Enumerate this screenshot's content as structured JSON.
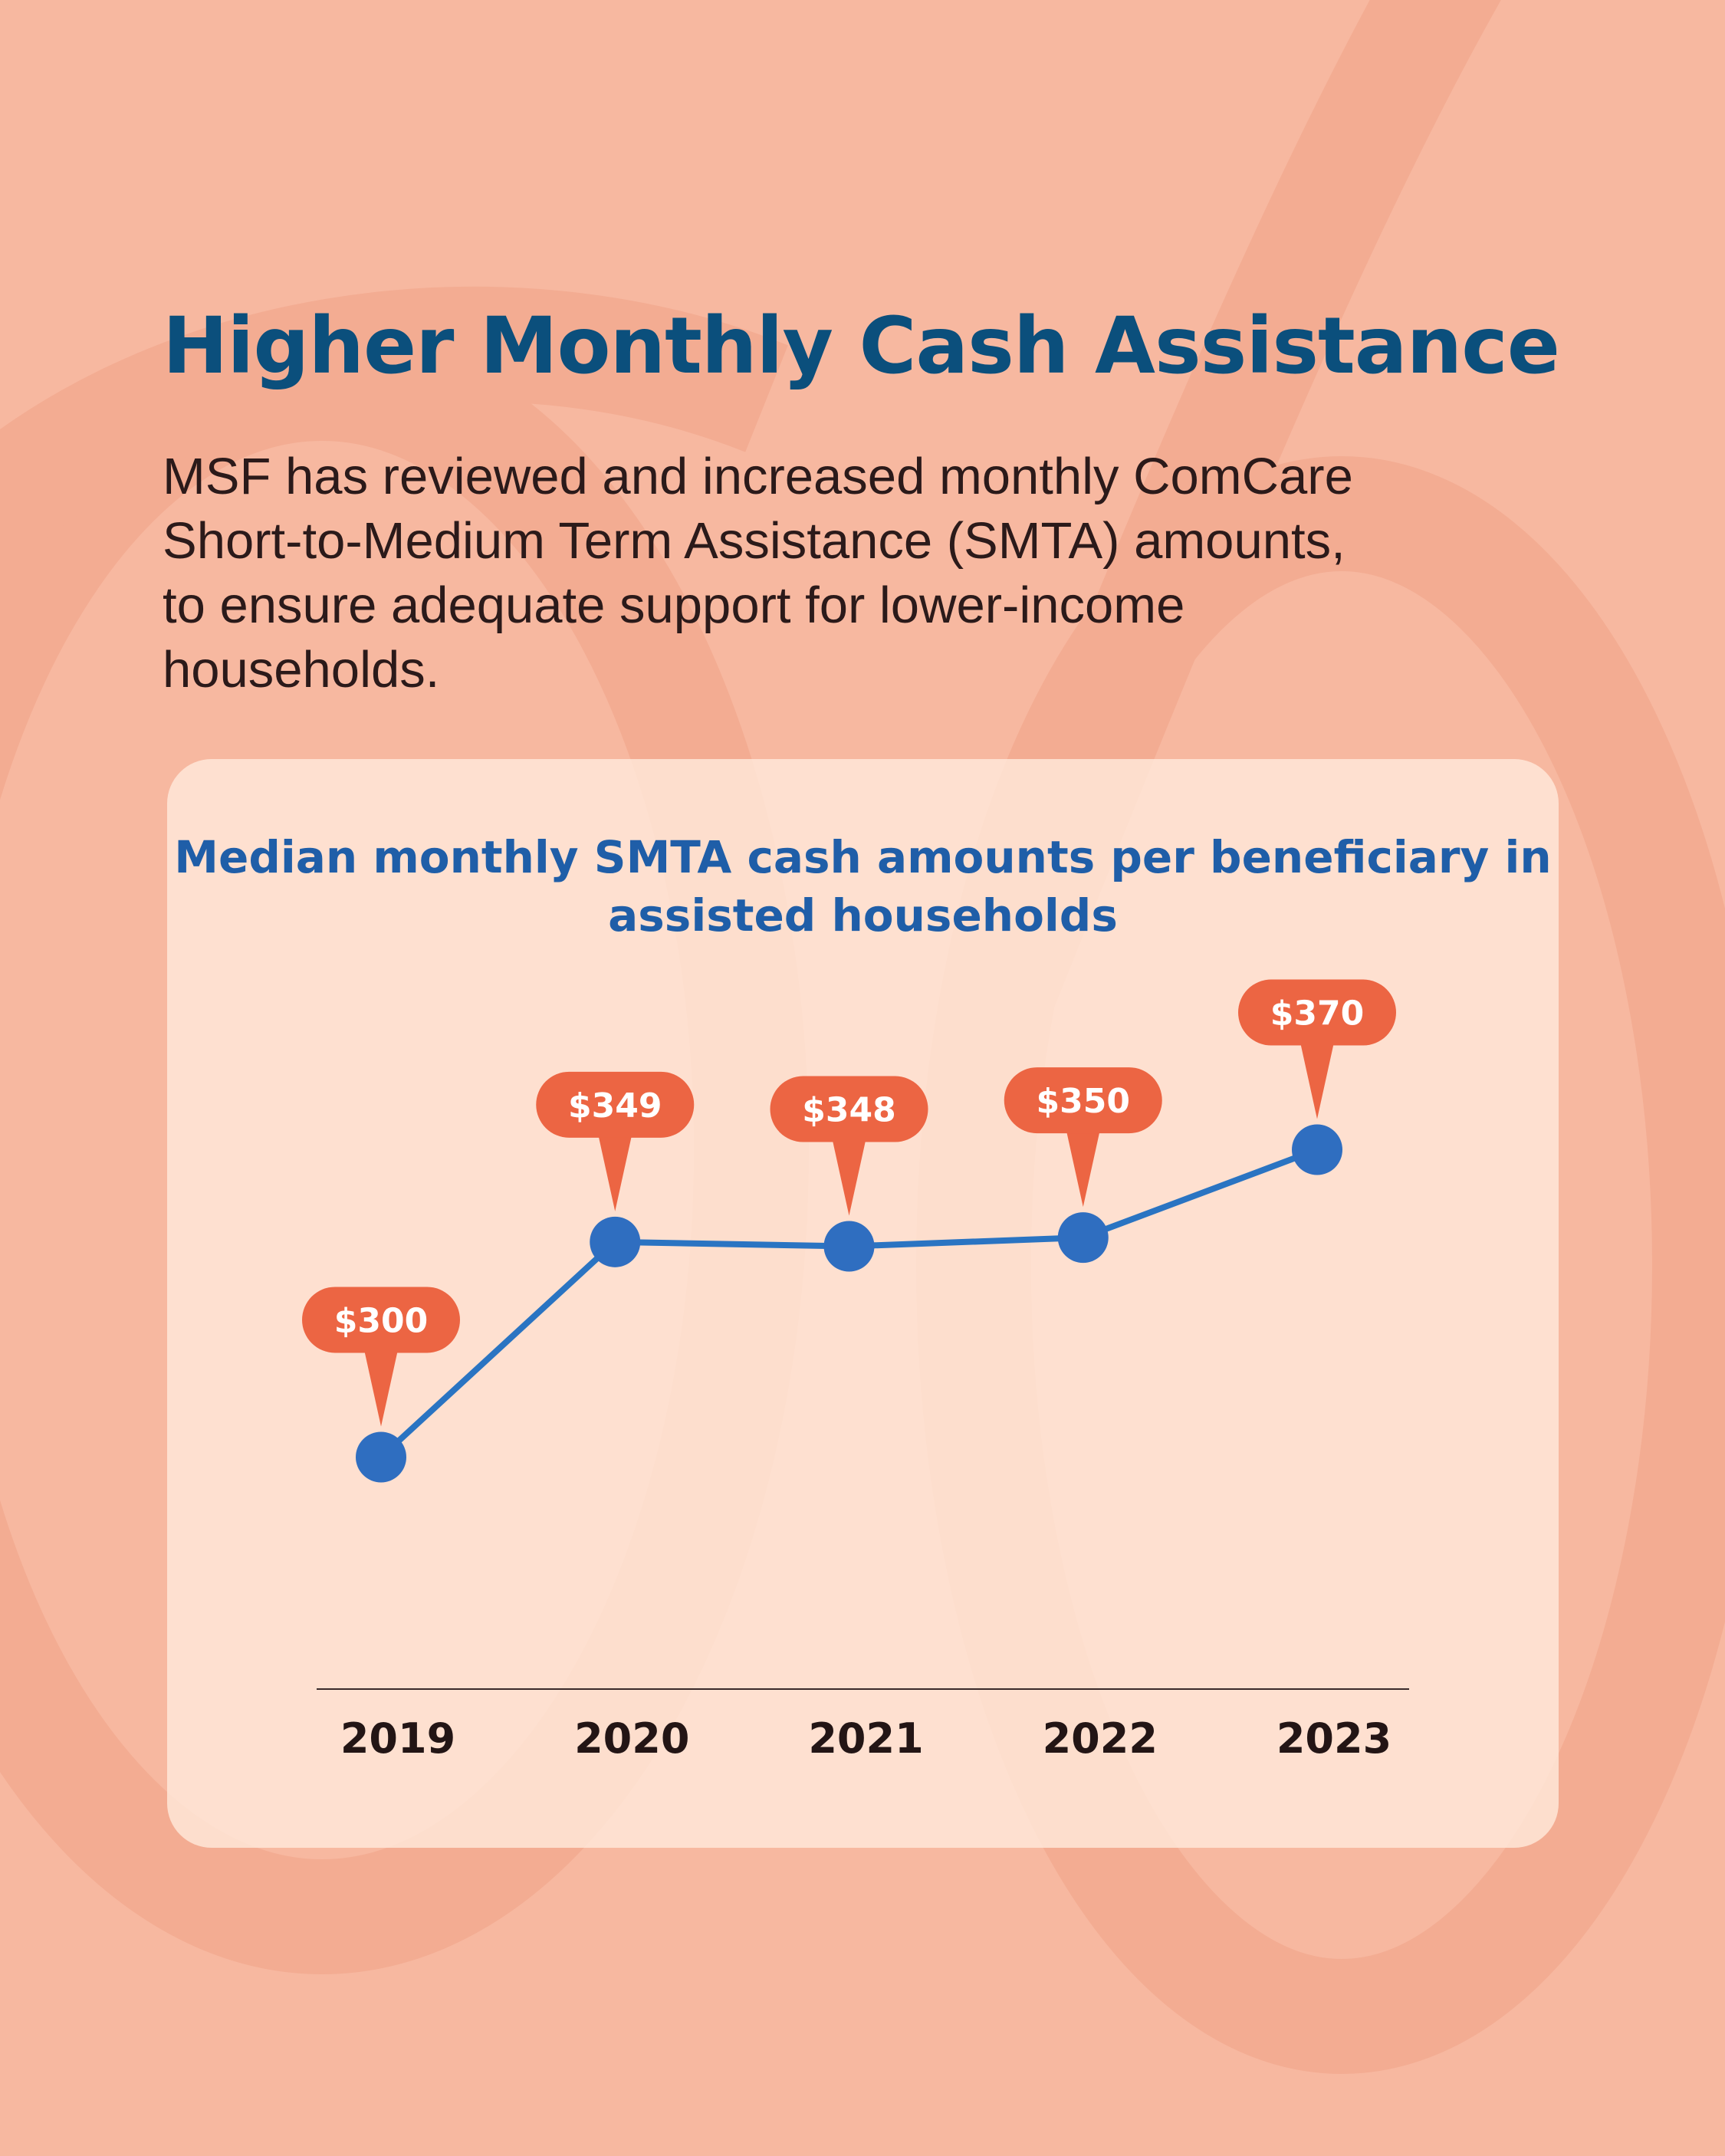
{
  "header": {
    "title": "Higher Monthly Cash Assistance",
    "description": "MSF has reviewed and increased monthly ComCare Short-to-Medium Term Assistance (SMTA) amounts, to ensure adequate support for lower-income households."
  },
  "colors": {
    "background": "#f7b8a0",
    "title": "#0b4f7c",
    "chart_title": "#1f5ea8",
    "line": "#2a74c2",
    "marker": "#2f6ec0",
    "label_bubble": "#ec6543",
    "label_text": "#ffffff",
    "axis": "#3a2a2a"
  },
  "chart_data": {
    "type": "line",
    "title": "Median monthly SMTA cash amounts per beneficiary in assisted households",
    "categories": [
      "2019",
      "2020",
      "2021",
      "2022",
      "2023"
    ],
    "values": [
      300,
      349,
      348,
      350,
      370
    ],
    "data_labels": [
      "$300",
      "$349",
      "$348",
      "$350",
      "$370"
    ],
    "xlabel": "",
    "ylabel": "",
    "ylim": [
      280,
      390
    ],
    "grid": false,
    "legend": "none"
  }
}
